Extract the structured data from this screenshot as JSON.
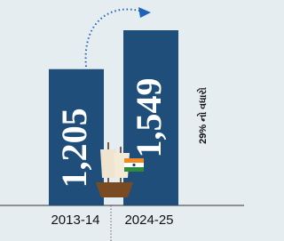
{
  "chart_data": {
    "type": "bar",
    "categories": [
      "2013-14",
      "2024-25"
    ],
    "values": [
      1205,
      1549
    ],
    "value_labels": [
      "1,205",
      "1,549"
    ],
    "color": "#1f4e7a",
    "annotation": "29% નો વધારો"
  }
}
